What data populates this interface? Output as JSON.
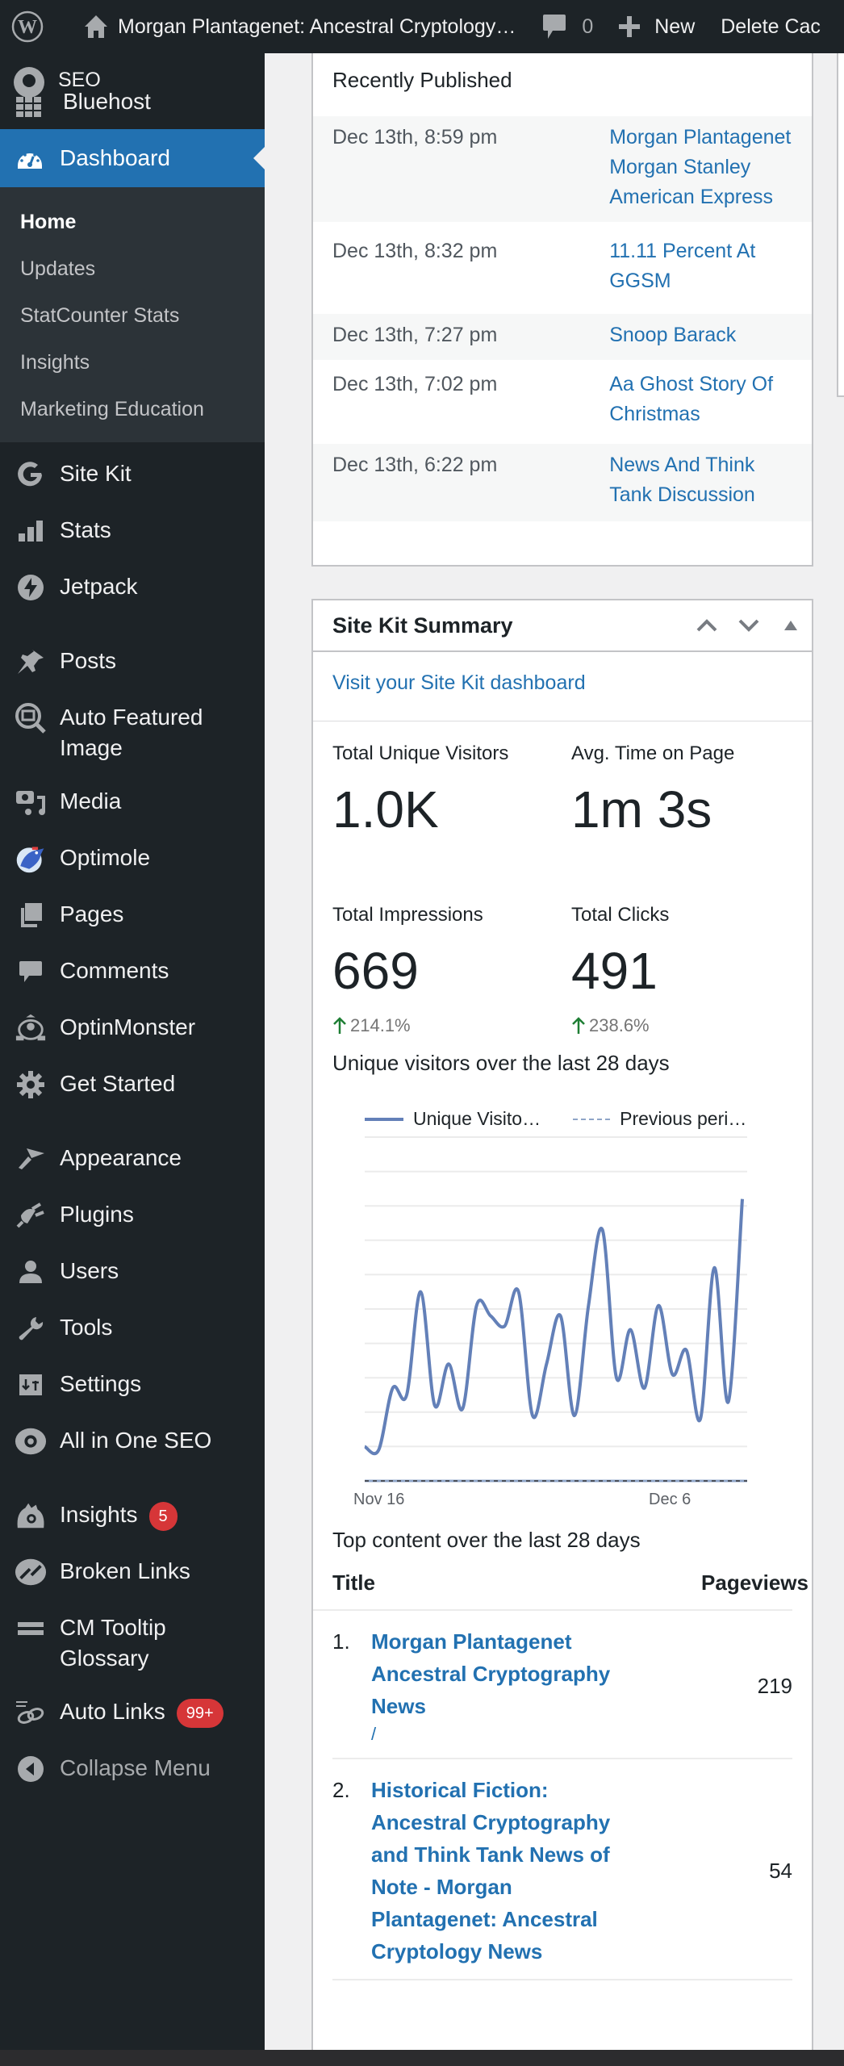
{
  "topbar": {
    "site_title": "Morgan Plantagenet: Ancestral Cryptology…",
    "comment_count": "0",
    "new_label": "New",
    "delete_cache_label": "Delete Cac"
  },
  "sidebar": {
    "brand_line1": "SEO",
    "brand_line2": "Bluehost",
    "dashboard_label": "Dashboard",
    "submenu": [
      "Home",
      "Updates",
      "StatCounter Stats",
      "Insights",
      "Marketing Education"
    ],
    "items": [
      {
        "label": "Site Kit"
      },
      {
        "label": "Stats"
      },
      {
        "label": "Jetpack"
      },
      {
        "label": "Posts"
      },
      {
        "label": "Auto Featured Image"
      },
      {
        "label": "Media"
      },
      {
        "label": "Optimole"
      },
      {
        "label": "Pages"
      },
      {
        "label": "Comments"
      },
      {
        "label": "OptinMonster"
      },
      {
        "label": "Get Started"
      },
      {
        "label": "Appearance"
      },
      {
        "label": "Plugins"
      },
      {
        "label": "Users"
      },
      {
        "label": "Tools"
      },
      {
        "label": "Settings"
      },
      {
        "label": "All in One SEO"
      },
      {
        "label": "Insights",
        "badge": "5"
      },
      {
        "label": "Broken Links"
      },
      {
        "label": "CM Tooltip Glossary"
      },
      {
        "label": "Auto Links",
        "badge": "99+"
      },
      {
        "label": "Collapse Menu"
      }
    ]
  },
  "recently_published": {
    "title": "Recently Published",
    "rows": [
      {
        "date": "Dec 13th, 8:59 pm",
        "title": "Morgan Plantagenet Morgan Stanley American Express"
      },
      {
        "date": "Dec 13th, 8:32 pm",
        "title": "11.11 Percent At GGSM"
      },
      {
        "date": "Dec 13th, 7:27 pm",
        "title": "Snoop Barack"
      },
      {
        "date": "Dec 13th, 7:02 pm",
        "title": "Aa Ghost Story Of Christmas"
      },
      {
        "date": "Dec 13th, 6:22 pm",
        "title": "News And Think Tank Discussion"
      }
    ]
  },
  "site_kit": {
    "title": "Site Kit Summary",
    "dashboard_link": "Visit your Site Kit dashboard",
    "stats": [
      {
        "label": "Total Unique Visitors",
        "value": "1.0K",
        "change": ""
      },
      {
        "label": "Avg. Time on Page",
        "value": "1m 3s",
        "change": ""
      },
      {
        "label": "Total Impressions",
        "value": "669",
        "change": "214.1%"
      },
      {
        "label": "Total Clicks",
        "value": "491",
        "change": "238.6%"
      }
    ],
    "chart_title": "Unique visitors over the last 28 days",
    "legend_current": "Unique Visito…",
    "legend_previous": "Previous peri…",
    "x_labels": [
      "Nov 16",
      "Dec 6"
    ],
    "top_content_title": "Top content over the last 28 days",
    "table_headers": {
      "title": "Title",
      "pageviews": "Pageviews"
    },
    "top_content": [
      {
        "rank": "1.",
        "title": "Morgan Plantagenet Ancestral Cryptography News",
        "path": "/",
        "pageviews": "219"
      },
      {
        "rank": "2.",
        "title": "Historical Fiction: Ancestral Cryptography and Think Tank News of Note - Morgan Plantagenet: Ancestral Cryptology News",
        "path": "",
        "pageviews": "54"
      }
    ]
  },
  "colors": {
    "admin_bar": "#1d2327",
    "accent": "#2271b1",
    "link": "#2271b1",
    "line": "#6380b8",
    "badge": "#d63638",
    "positive_arrow": "#1e7e34"
  },
  "chart_data": {
    "type": "line",
    "title": "Unique visitors over the last 28 days",
    "xlabel": "",
    "ylabel": "",
    "tick_labels_x": [
      "Nov 16",
      "Dec 6"
    ],
    "grid": true,
    "legend_position": "top",
    "x": [
      "Nov 16",
      "Nov 17",
      "Nov 18",
      "Nov 19",
      "Nov 20",
      "Nov 21",
      "Nov 22",
      "Nov 23",
      "Nov 24",
      "Nov 25",
      "Nov 26",
      "Nov 27",
      "Nov 28",
      "Nov 29",
      "Nov 30",
      "Dec 1",
      "Dec 2",
      "Dec 3",
      "Dec 4",
      "Dec 5",
      "Dec 6",
      "Dec 7",
      "Dec 8",
      "Dec 9",
      "Dec 10",
      "Dec 11",
      "Dec 12",
      "Dec 13"
    ],
    "series": [
      {
        "name": "Unique Visitors",
        "style": "solid",
        "values": [
          10,
          9,
          27,
          25,
          55,
          22,
          34,
          21,
          51,
          48,
          45,
          55,
          19,
          34,
          48,
          19,
          51,
          73,
          30,
          44,
          27,
          51,
          31,
          38,
          18,
          62,
          23,
          82
        ]
      },
      {
        "name": "Previous period",
        "style": "dashed",
        "values": [
          0,
          0,
          0,
          0,
          0,
          0,
          0,
          0,
          0,
          0,
          0,
          0,
          0,
          0,
          0,
          0,
          0,
          0,
          0,
          0,
          0,
          0,
          0,
          0,
          0,
          0,
          0,
          0
        ]
      }
    ],
    "ylim": [
      0,
      100
    ]
  }
}
